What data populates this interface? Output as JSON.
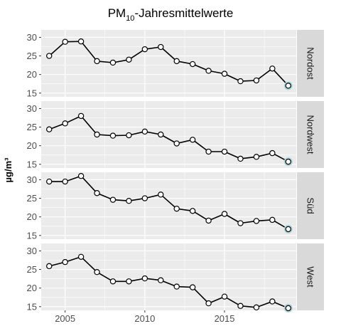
{
  "chart_data": {
    "type": "line",
    "title_main": "PM",
    "title_sub": "10",
    "title_rest": "-Jahresmittelwerte",
    "ylabel": "µg/m³",
    "xlabel": "",
    "x": [
      2004,
      2005,
      2006,
      2007,
      2008,
      2009,
      2010,
      2011,
      2012,
      2013,
      2014,
      2015,
      2016,
      2017,
      2018,
      2019
    ],
    "xlim": [
      2003.5,
      2019.5
    ],
    "xticks": [
      2005,
      2010,
      2015
    ],
    "ylim": [
      14,
      32
    ],
    "yticks": [
      15,
      20,
      25,
      30
    ],
    "grid": true,
    "panels": [
      {
        "name": "Nordost",
        "values": [
          25.0,
          28.8,
          28.9,
          23.6,
          23.2,
          24.0,
          26.8,
          27.4,
          23.6,
          22.8,
          21.0,
          20.2,
          18.2,
          18.4,
          21.6,
          17.0
        ]
      },
      {
        "name": "Nordwest",
        "values": [
          24.4,
          26.0,
          28.0,
          23.0,
          22.7,
          22.8,
          23.8,
          23.0,
          20.6,
          21.6,
          18.4,
          18.4,
          16.5,
          17.0,
          18.0,
          15.7
        ]
      },
      {
        "name": "Süd",
        "values": [
          29.5,
          29.5,
          31.0,
          26.4,
          24.6,
          24.3,
          25.0,
          26.0,
          22.2,
          21.6,
          19.0,
          20.8,
          18.3,
          18.9,
          19.2,
          16.7
        ]
      },
      {
        "name": "West",
        "values": [
          25.9,
          27.0,
          28.4,
          24.3,
          21.8,
          21.8,
          22.6,
          22.1,
          20.4,
          20.2,
          15.9,
          17.7,
          15.2,
          14.8,
          16.4,
          14.6
        ]
      }
    ],
    "colors": {
      "panel_background": "#ebebeb",
      "grid": "#ffffff",
      "strip": "#d9d9d9",
      "line": "#000000",
      "point_fill": "#ffffff",
      "highlight_ring": "#a9d4d9"
    }
  }
}
